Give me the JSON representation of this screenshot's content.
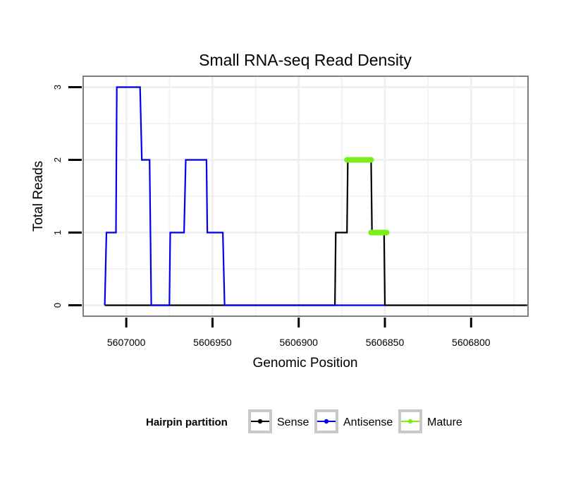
{
  "chart_data": {
    "type": "line",
    "title": "Small RNA-seq Read Density",
    "xlabel": "Genomic Position",
    "ylabel": "Total Reads",
    "xlim": [
      5607025,
      5606767
    ],
    "ylim": [
      -0.15,
      3.15
    ],
    "x_reversed": true,
    "x_ticks": [
      5607000,
      5606950,
      5606900,
      5606850,
      5606800
    ],
    "x_tick_labels": [
      "5607000",
      "5606950",
      "5606900",
      "5606850",
      "5606800"
    ],
    "y_ticks": [
      0,
      1,
      2,
      3
    ],
    "y_tick_labels": [
      "0",
      "1",
      "2",
      "3"
    ],
    "grid": true,
    "legend": {
      "title": "Hairpin partition",
      "position": "bottom",
      "entries": [
        "Sense",
        "Antisense",
        "Mature"
      ]
    },
    "colors": {
      "Sense": "#000000",
      "Antisense": "#0000ee",
      "Mature": "#7cee1c",
      "panel_border": "#7f7f7f",
      "grid": "#f0f0f0"
    },
    "series": [
      {
        "name": "Sense",
        "points": [
          [
            5607012.5,
            0
          ],
          [
            5606879.0,
            0
          ],
          [
            5606878.5,
            1
          ],
          [
            5606872.0,
            1
          ],
          [
            5606871.5,
            2
          ],
          [
            5606858.0,
            2
          ],
          [
            5606857.5,
            1
          ],
          [
            5606850.5,
            1
          ],
          [
            5606850.0,
            0
          ],
          [
            5606767.5,
            0
          ]
        ]
      },
      {
        "name": "Antisense",
        "points": [
          [
            5607012.5,
            0
          ],
          [
            5607011.5,
            1
          ],
          [
            5607006.0,
            1
          ],
          [
            5607005.5,
            3
          ],
          [
            5606992.0,
            3
          ],
          [
            5606991.0,
            2
          ],
          [
            5606986.5,
            2
          ],
          [
            5606985.5,
            0
          ],
          [
            5606975.0,
            0
          ],
          [
            5606974.5,
            1
          ],
          [
            5606966.5,
            1
          ],
          [
            5606965.5,
            2
          ],
          [
            5606953.5,
            2
          ],
          [
            5606953.0,
            1
          ],
          [
            5606944.0,
            1
          ],
          [
            5606943.0,
            0
          ],
          [
            5606942.0,
            0
          ],
          [
            5606878.0,
            0
          ],
          [
            5606850.0,
            0
          ]
        ]
      },
      {
        "name": "Mature",
        "segments": [
          {
            "x": [
              5606872.0,
              5606858.0
            ],
            "y": 2
          },
          {
            "x": [
              5606858.0,
              5606849.0
            ],
            "y": 1
          }
        ]
      }
    ]
  }
}
